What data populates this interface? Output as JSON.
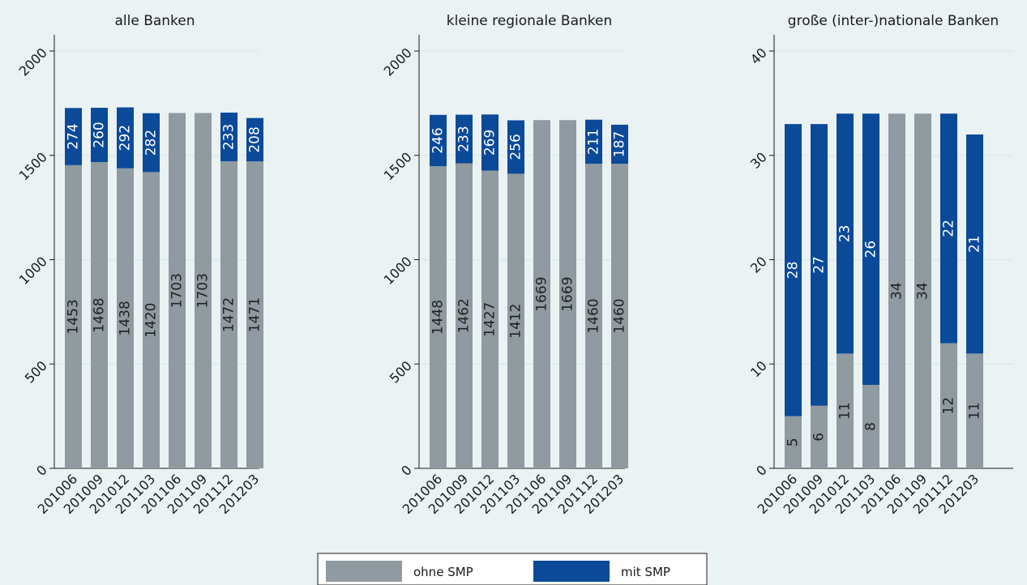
{
  "colors": {
    "background": "#eaf2f3",
    "ohne_smp": "#8f9aa1",
    "mit_smp": "#0a4a99",
    "gridline": "#dbe7ea",
    "axis": "#1a1a1a"
  },
  "chart_data": [
    {
      "type": "bar",
      "stacked": true,
      "title": "alle Banken",
      "categories": [
        "201006",
        "201009",
        "201012",
        "201103",
        "201106",
        "201109",
        "201112",
        "201203"
      ],
      "series": [
        {
          "name": "ohne SMP",
          "values": [
            1453,
            1468,
            1438,
            1420,
            1703,
            1703,
            1472,
            1471
          ]
        },
        {
          "name": "mit SMP",
          "values": [
            274,
            260,
            292,
            282,
            0,
            0,
            233,
            208
          ]
        }
      ],
      "yticks": [
        0,
        500,
        1000,
        1500,
        2000
      ],
      "ylim": [
        0,
        2000
      ],
      "grid": true,
      "data_labels": true
    },
    {
      "type": "bar",
      "stacked": true,
      "title": "kleine regionale Banken",
      "categories": [
        "201006",
        "201009",
        "201012",
        "201103",
        "201106",
        "201109",
        "201112",
        "201203"
      ],
      "series": [
        {
          "name": "ohne SMP",
          "values": [
            1448,
            1462,
            1427,
            1412,
            1669,
            1669,
            1460,
            1460
          ]
        },
        {
          "name": "mit SMP",
          "values": [
            246,
            233,
            269,
            256,
            0,
            0,
            211,
            187
          ]
        }
      ],
      "yticks": [
        0,
        500,
        1000,
        1500,
        2000
      ],
      "ylim": [
        0,
        2000
      ],
      "grid": true,
      "data_labels": true
    },
    {
      "type": "bar",
      "stacked": true,
      "title": "große (inter-)nationale Banken",
      "categories": [
        "201006",
        "201009",
        "201012",
        "201103",
        "201106",
        "201109",
        "201112",
        "201203"
      ],
      "series": [
        {
          "name": "ohne SMP",
          "values": [
            5,
            6,
            11,
            8,
            34,
            34,
            12,
            11
          ]
        },
        {
          "name": "mit SMP",
          "values": [
            28,
            27,
            23,
            26,
            0,
            0,
            22,
            21
          ]
        }
      ],
      "yticks": [
        0,
        10,
        20,
        30,
        40
      ],
      "ylim": [
        0,
        40
      ],
      "grid": true,
      "data_labels": true
    }
  ],
  "legend": {
    "position": "bottom-center",
    "items": [
      {
        "label": "ohne SMP",
        "color": "#8f9aa1"
      },
      {
        "label": "mit SMP",
        "color": "#0a4a99"
      }
    ]
  }
}
